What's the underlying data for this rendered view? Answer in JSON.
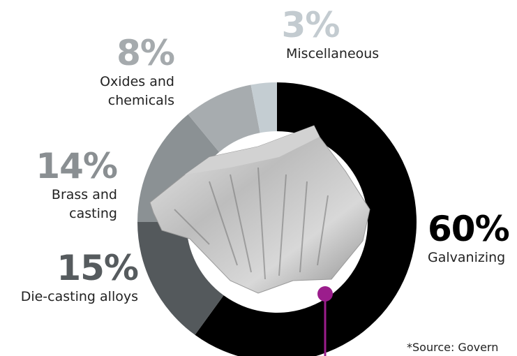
{
  "chart_data": {
    "type": "donut",
    "categories": [
      "Galvanizing",
      "Die-casting alloys",
      "Brass and casting",
      "Oxides and chemicals",
      "Miscellaneous"
    ],
    "values": [
      60,
      15,
      14,
      8,
      3
    ],
    "value_labels": [
      "60%",
      "15%",
      "14%",
      "8%",
      "3%"
    ],
    "colors": [
      "#000000",
      "#54595c",
      "#8b9194",
      "#a7acaf",
      "#c4cdd2"
    ],
    "label_colors": [
      "#000000",
      "#565b5e",
      "#8a8f92",
      "#a5aaad",
      "#c3cbd0"
    ],
    "note": "*Source: Govern"
  }
}
